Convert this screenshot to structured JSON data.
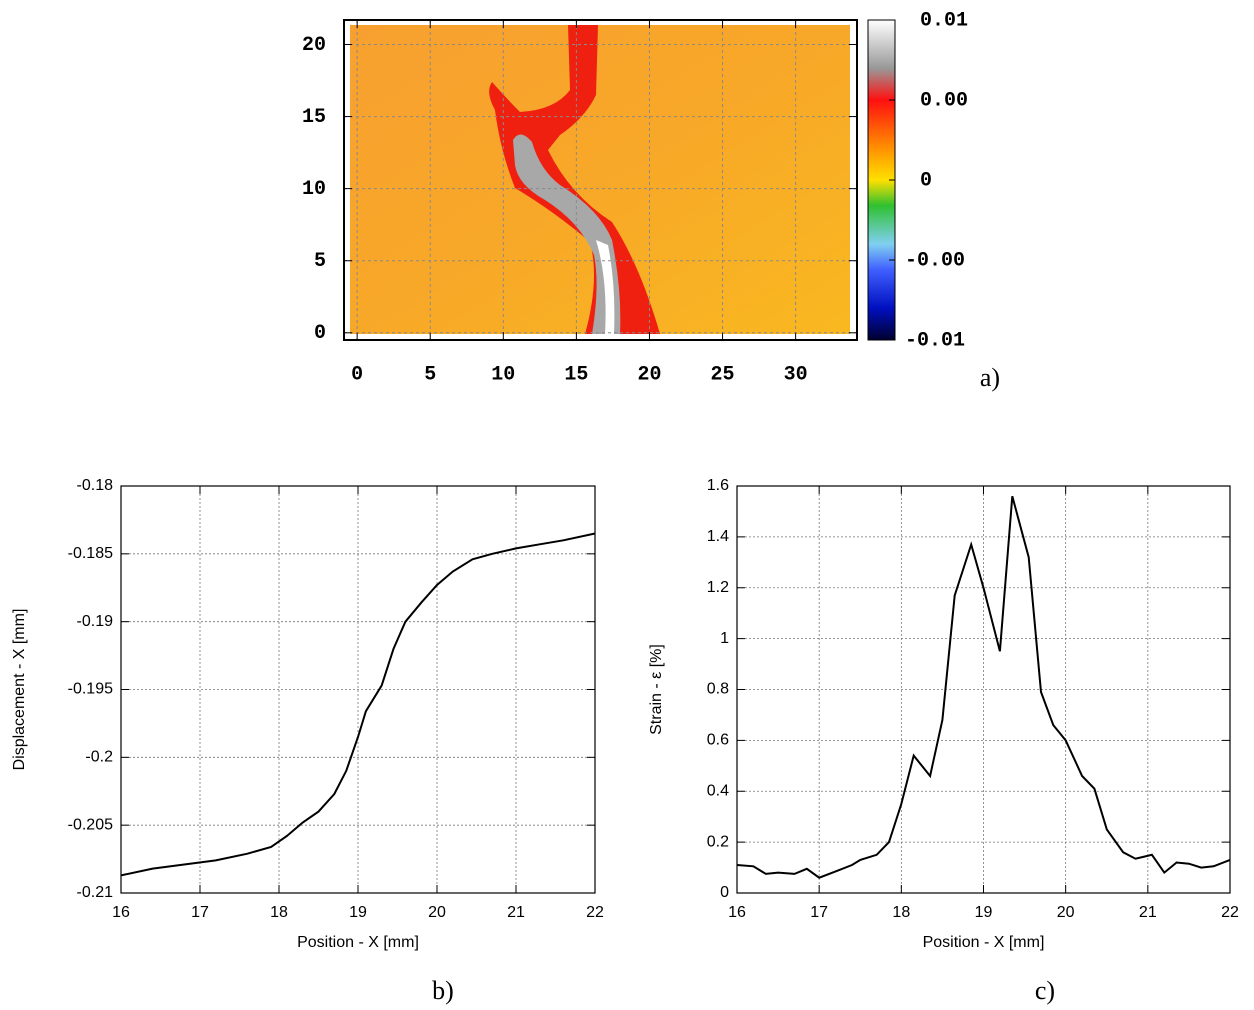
{
  "chart_data": [
    {
      "type": "heatmap",
      "label": "a)",
      "xlim": [
        -0.9,
        34.2
      ],
      "xticks": [
        0,
        5,
        10,
        15,
        20,
        25,
        30
      ],
      "ylim": [
        -0.5,
        21.7
      ],
      "yticks": [
        0,
        5,
        10,
        15,
        20
      ],
      "grid": true,
      "clim": [
        -0.01,
        0.01
      ],
      "cticks": [
        0.01,
        {
          "value": 0.005,
          "label": "0.00"
        },
        0,
        {
          "value": -0.005,
          "label": "-0.00"
        },
        -0.01
      ]
    },
    {
      "type": "line",
      "label": "b)",
      "xlabel": "Position - X [mm]",
      "ylabel": "Displacement - X [mm]",
      "xlim": [
        16,
        22
      ],
      "xticks": [
        16,
        17,
        18,
        19,
        20,
        21,
        22
      ],
      "ylim": [
        -0.21,
        -0.18
      ],
      "yticks": [
        -0.21,
        -0.205,
        -0.2,
        -0.195,
        -0.19,
        -0.185,
        -0.18
      ],
      "grid": true,
      "color": "#000000",
      "x": [
        16,
        16.4,
        16.8,
        17.2,
        17.6,
        17.9,
        18.1,
        18.3,
        18.5,
        18.7,
        18.85,
        19.0,
        19.1,
        19.3,
        19.45,
        19.6,
        19.8,
        20.0,
        20.2,
        20.45,
        20.7,
        21.0,
        21.3,
        21.6,
        22.0
      ],
      "values": [
        -0.2087,
        -0.2082,
        -0.2079,
        -0.2076,
        -0.2071,
        -0.2066,
        -0.2058,
        -0.2048,
        -0.204,
        -0.2027,
        -0.201,
        -0.1985,
        -0.1966,
        -0.1947,
        -0.192,
        -0.19,
        -0.1886,
        -0.1873,
        -0.1863,
        -0.1854,
        -0.185,
        -0.1846,
        -0.1843,
        -0.184,
        -0.1835
      ]
    },
    {
      "type": "line",
      "label": "c)",
      "xlabel": "Position - X [mm]",
      "ylabel": "Strain - ε [%]",
      "xlim": [
        16,
        22
      ],
      "xticks": [
        16,
        17,
        18,
        19,
        20,
        21,
        22
      ],
      "ylim": [
        0,
        1.6
      ],
      "yticks": [
        0,
        0.2,
        0.4,
        0.6,
        0.8,
        1,
        1.2,
        1.4,
        1.6
      ],
      "grid": true,
      "color": "#000000",
      "x": [
        16,
        16.2,
        16.35,
        16.5,
        16.7,
        16.85,
        17.0,
        17.2,
        17.4,
        17.5,
        17.7,
        17.85,
        18.0,
        18.15,
        18.35,
        18.5,
        18.65,
        18.85,
        19.0,
        19.2,
        19.35,
        19.55,
        19.7,
        19.85,
        20.0,
        20.2,
        20.35,
        20.5,
        20.7,
        20.85,
        21.05,
        21.2,
        21.35,
        21.5,
        21.65,
        21.8,
        22
      ],
      "values": [
        0.11,
        0.105,
        0.075,
        0.08,
        0.075,
        0.095,
        0.06,
        0.085,
        0.11,
        0.13,
        0.15,
        0.2,
        0.35,
        0.54,
        0.46,
        0.68,
        1.17,
        1.37,
        1.2,
        0.95,
        1.56,
        1.32,
        0.79,
        0.66,
        0.6,
        0.46,
        0.41,
        0.25,
        0.16,
        0.135,
        0.15,
        0.08,
        0.12,
        0.115,
        0.1,
        0.105,
        0.13
      ]
    }
  ]
}
